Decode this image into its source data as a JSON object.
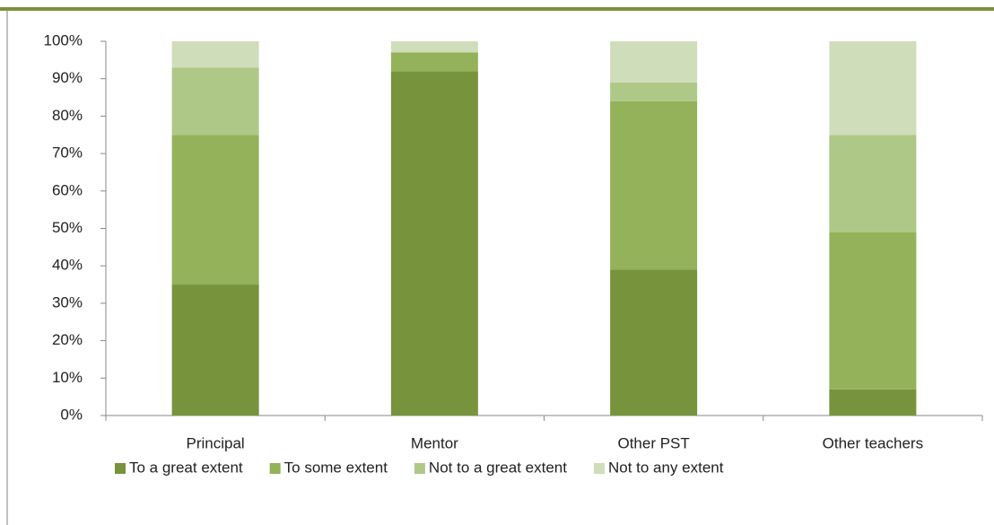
{
  "chart_data": {
    "type": "stacked_bar",
    "categories": [
      "Principal",
      "Mentor",
      "Other PST",
      "Other teachers"
    ],
    "series": [
      {
        "name": "To a great extent",
        "color": "#77933c",
        "values": [
          35,
          92,
          39,
          7
        ]
      },
      {
        "name": "To some extent",
        "color": "#93b25a",
        "values": [
          40,
          5,
          45,
          42
        ]
      },
      {
        "name": "Not to a great extent",
        "color": "#aec887",
        "values": [
          18,
          0,
          5,
          26
        ]
      },
      {
        "name": "Not to any extent",
        "color": "#d0ddba",
        "values": [
          7,
          3,
          11,
          25
        ]
      }
    ],
    "ylim": [
      0,
      100
    ],
    "yticks": [
      {
        "value": 0,
        "label": "0%"
      },
      {
        "value": 10,
        "label": "10%"
      },
      {
        "value": 20,
        "label": "20%"
      },
      {
        "value": 30,
        "label": "30%"
      },
      {
        "value": 40,
        "label": "40%"
      },
      {
        "value": 50,
        "label": "50%"
      },
      {
        "value": 60,
        "label": "60%"
      },
      {
        "value": 70,
        "label": "70%"
      },
      {
        "value": 80,
        "label": "80%"
      },
      {
        "value": 90,
        "label": "90%"
      },
      {
        "value": 100,
        "label": "100%"
      }
    ],
    "legend": "bottom"
  }
}
